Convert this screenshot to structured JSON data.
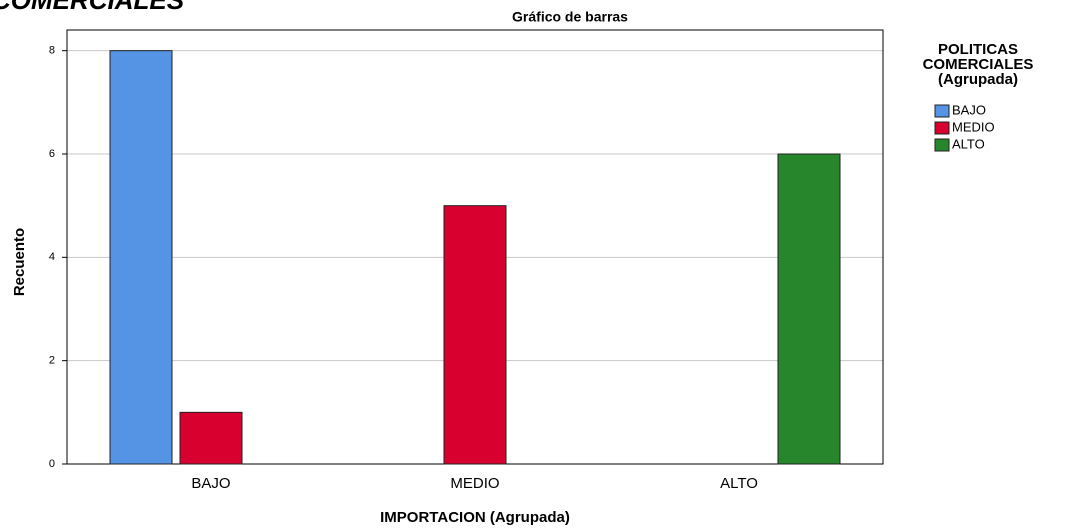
{
  "page_heading": "COMERCIALES",
  "chart_data": {
    "type": "bar",
    "title": "Gráfico de barras",
    "x_label": "IMPORTACION (Agrupada)",
    "y_label": "Recuento",
    "categories": [
      "BAJO",
      "MEDIO",
      "ALTO"
    ],
    "series": [
      {
        "name": "BAJO",
        "color": "#5593e4",
        "values": [
          8,
          null,
          null
        ]
      },
      {
        "name": "MEDIO",
        "color": "#d8002f",
        "values": [
          1,
          5,
          null
        ]
      },
      {
        "name": "ALTO",
        "color": "#27862b",
        "values": [
          null,
          null,
          6
        ]
      }
    ],
    "legend_title": [
      "POLITICAS",
      "COMERCIALES",
      "(Agrupada)"
    ],
    "legend": "right",
    "ylim": [
      0,
      8.4
    ],
    "yticks": [
      0,
      2,
      4,
      6,
      8
    ],
    "grid": true
  }
}
